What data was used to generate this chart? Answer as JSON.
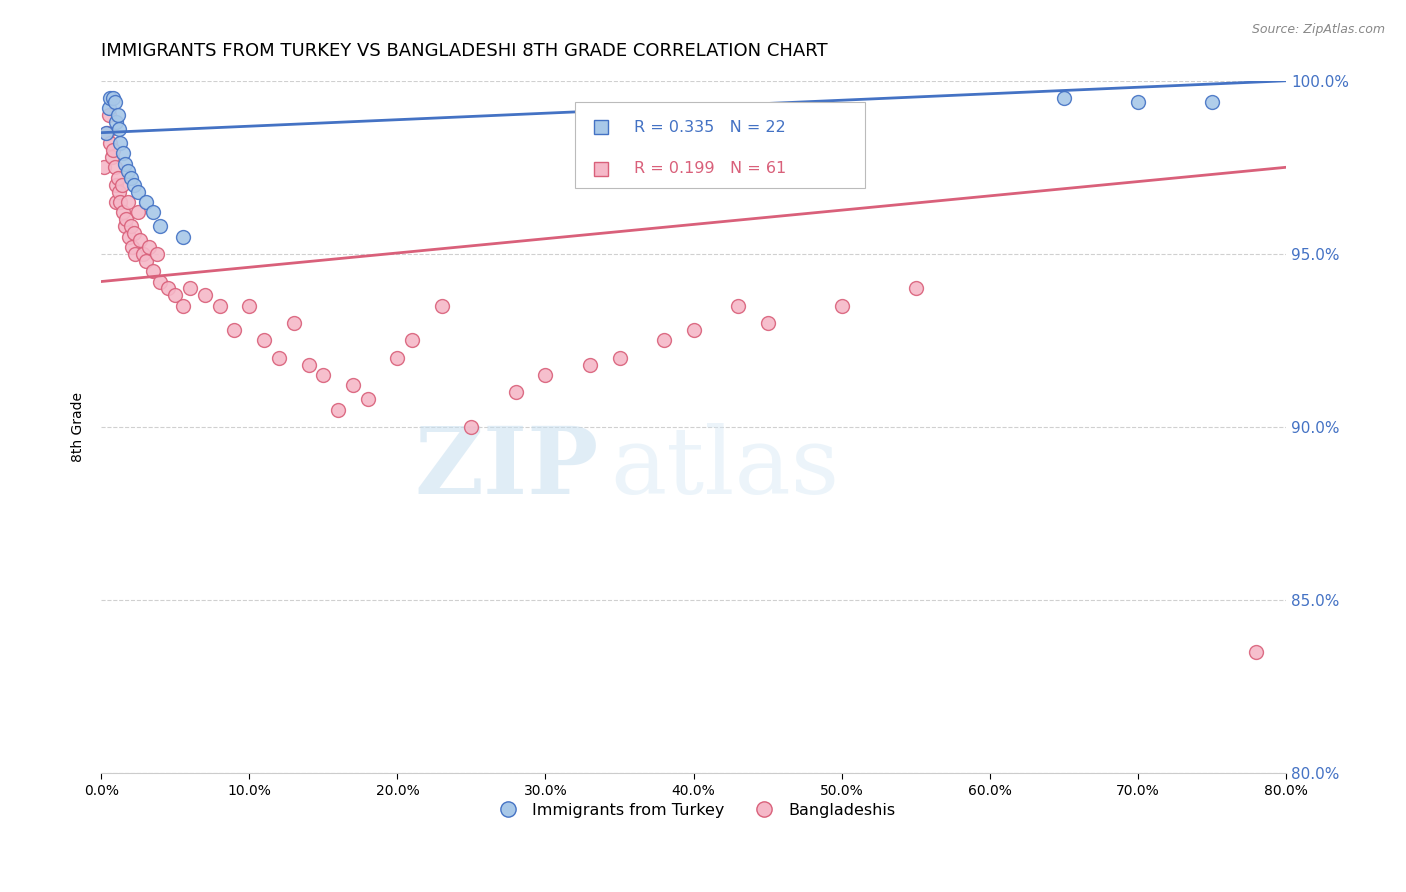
{
  "title": "IMMIGRANTS FROM TURKEY VS BANGLADESHI 8TH GRADE CORRELATION CHART",
  "source": "Source: ZipAtlas.com",
  "ylabel": "8th Grade",
  "x_min": 0.0,
  "x_max": 80.0,
  "y_min": 80.0,
  "y_max": 100.0,
  "x_ticks": [
    0.0,
    10.0,
    20.0,
    30.0,
    40.0,
    50.0,
    60.0,
    70.0,
    80.0
  ],
  "y_ticks": [
    80.0,
    85.0,
    90.0,
    95.0,
    100.0
  ],
  "turkey_R": 0.335,
  "turkey_N": 22,
  "bangla_R": 0.199,
  "bangla_N": 61,
  "legend_label_turkey": "Immigrants from Turkey",
  "legend_label_bangla": "Bangladeshis",
  "scatter_turkey_color": "#a8c8e8",
  "scatter_bangla_color": "#f5b8c8",
  "line_turkey_color": "#4472c4",
  "line_bangla_color": "#d9607a",
  "legend_R_color_turkey": "#4472c4",
  "legend_R_color_bangla": "#d9607a",
  "background_color": "#ffffff",
  "grid_color": "#d0d0d0",
  "title_fontsize": 13,
  "axis_label_fontsize": 10,
  "tick_fontsize": 10,
  "right_tick_color": "#4472c4",
  "watermark_zip": "ZIP",
  "watermark_atlas": "atlas",
  "turkey_x": [
    0.3,
    0.5,
    0.6,
    0.8,
    0.9,
    1.0,
    1.1,
    1.2,
    1.3,
    1.5,
    1.6,
    1.8,
    2.0,
    2.2,
    2.5,
    3.0,
    3.5,
    4.0,
    5.5,
    65.0,
    70.0,
    75.0
  ],
  "turkey_y": [
    98.5,
    99.2,
    99.5,
    99.5,
    99.4,
    98.8,
    99.0,
    98.6,
    98.2,
    97.9,
    97.6,
    97.4,
    97.2,
    97.0,
    96.8,
    96.5,
    96.2,
    95.8,
    95.5,
    99.5,
    99.4,
    99.4
  ],
  "bangla_x": [
    0.2,
    0.4,
    0.5,
    0.6,
    0.7,
    0.8,
    0.9,
    1.0,
    1.0,
    1.1,
    1.2,
    1.3,
    1.4,
    1.5,
    1.6,
    1.7,
    1.8,
    1.9,
    2.0,
    2.1,
    2.2,
    2.3,
    2.5,
    2.6,
    2.8,
    3.0,
    3.2,
    3.5,
    3.8,
    4.0,
    4.5,
    5.0,
    5.5,
    6.0,
    7.0,
    8.0,
    9.0,
    10.0,
    11.0,
    12.0,
    13.0,
    14.0,
    15.0,
    16.0,
    17.0,
    18.0,
    20.0,
    21.0,
    23.0,
    25.0,
    28.0,
    30.0,
    33.0,
    35.0,
    38.0,
    40.0,
    43.0,
    45.0,
    50.0,
    55.0,
    78.0
  ],
  "bangla_y": [
    97.5,
    98.5,
    99.0,
    98.2,
    97.8,
    98.0,
    97.5,
    97.0,
    96.5,
    97.2,
    96.8,
    96.5,
    97.0,
    96.2,
    95.8,
    96.0,
    96.5,
    95.5,
    95.8,
    95.2,
    95.6,
    95.0,
    96.2,
    95.4,
    95.0,
    94.8,
    95.2,
    94.5,
    95.0,
    94.2,
    94.0,
    93.8,
    93.5,
    94.0,
    93.8,
    93.5,
    92.8,
    93.5,
    92.5,
    92.0,
    93.0,
    91.8,
    91.5,
    90.5,
    91.2,
    90.8,
    92.0,
    92.5,
    93.5,
    90.0,
    91.0,
    91.5,
    91.8,
    92.0,
    92.5,
    92.8,
    93.5,
    93.0,
    93.5,
    94.0,
    83.5
  ]
}
